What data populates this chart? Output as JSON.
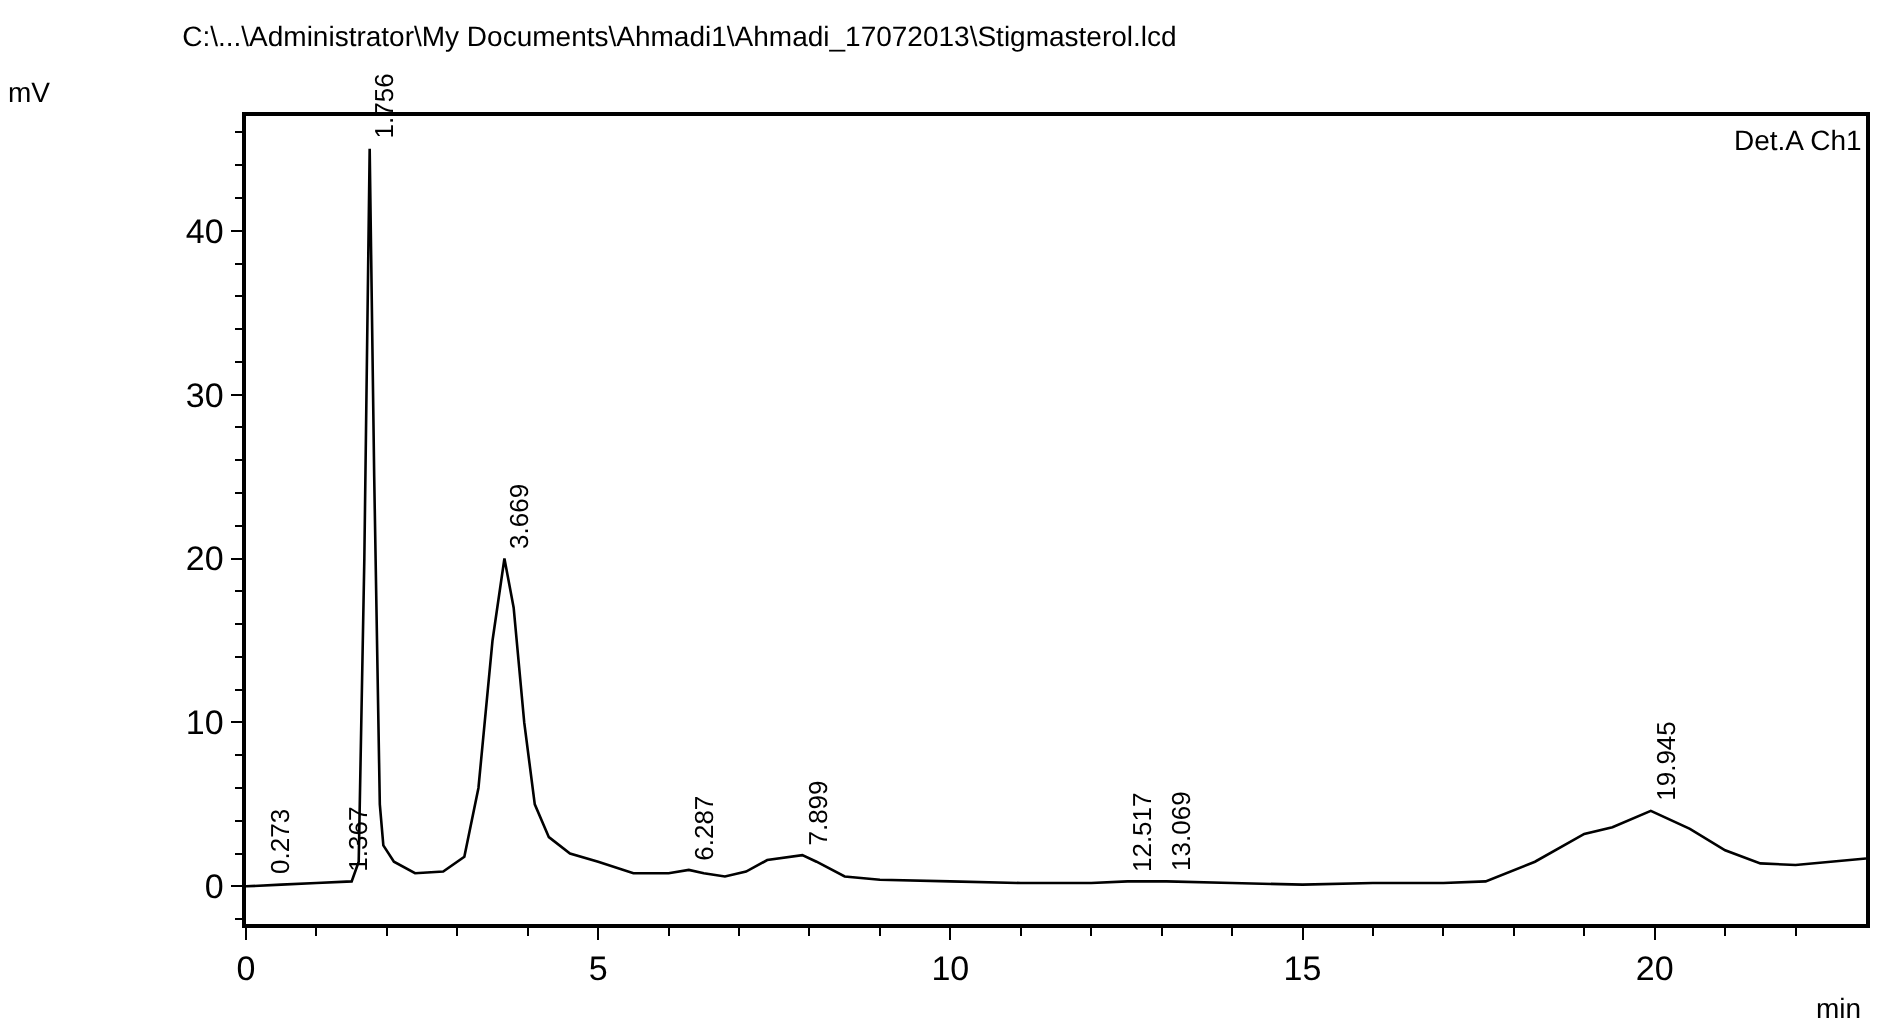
{
  "chart_data": {
    "type": "line",
    "title": "C:\\...\\Administrator\\My Documents\\Ahmadi1\\Ahmadi_17072013\\Stigmasterol.lcd",
    "xlabel": "min",
    "ylabel": "mV",
    "series": [
      {
        "color": "#000000",
        "x": [
          0,
          0.5,
          1.0,
          1.5,
          1.6,
          1.68,
          1.756,
          1.82,
          1.9,
          1.95,
          2.1,
          2.4,
          2.8,
          3.1,
          3.3,
          3.5,
          3.669,
          3.8,
          3.95,
          4.1,
          4.3,
          4.6,
          5.0,
          5.5,
          6.0,
          6.287,
          6.5,
          6.8,
          7.1,
          7.4,
          7.899,
          8.1,
          8.5,
          9,
          10,
          11,
          12,
          12.517,
          13.069,
          14,
          15,
          16,
          17,
          17.6,
          18.3,
          19,
          19.4,
          19.945,
          20.5,
          21,
          21.5,
          22,
          23
        ],
        "values": [
          0,
          0.1,
          0.2,
          0.3,
          1.5,
          20,
          45,
          25,
          5,
          2.5,
          1.5,
          0.8,
          0.9,
          1.8,
          6,
          15,
          20,
          17,
          10,
          5,
          3,
          2,
          1.5,
          0.8,
          0.8,
          1.0,
          0.8,
          0.6,
          0.9,
          1.6,
          1.9,
          1.5,
          0.6,
          0.4,
          0.3,
          0.2,
          0.2,
          0.3,
          0.3,
          0.2,
          0.1,
          0.2,
          0.2,
          0.3,
          1.5,
          3.2,
          3.6,
          4.6,
          3.5,
          2.2,
          1.4,
          1.3,
          1.7
        ]
      }
    ],
    "annotations": [
      {
        "text": "0.273",
        "x": 0.273,
        "y": 0.1
      },
      {
        "text": "1.367",
        "x": 1.367,
        "y": 0.3
      },
      {
        "text": "1.756",
        "x": 1.756,
        "y": 45
      },
      {
        "text": "3.669",
        "x": 3.669,
        "y": 20
      },
      {
        "text": "6.287",
        "x": 6.287,
        "y": 1.0
      },
      {
        "text": "7.899",
        "x": 7.899,
        "y": 1.9
      },
      {
        "text": "12.517",
        "x": 12.517,
        "y": 0.3
      },
      {
        "text": "13.069",
        "x": 13.069,
        "y": 0.3
      },
      {
        "text": "19.945",
        "x": 19.945,
        "y": 4.6
      },
      "Det.A Ch1"
    ],
    "xlim": [
      0,
      23
    ],
    "ylim": [
      -2.3,
      47
    ],
    "xticks": [
      0,
      {
        "value": 1,
        "label": null
      },
      {
        "value": 2,
        "label": null
      },
      {
        "value": 3,
        "label": null
      },
      {
        "value": 4,
        "label": null
      },
      5,
      {
        "value": 6,
        "label": null
      },
      {
        "value": 7,
        "label": null
      },
      {
        "value": 8,
        "label": null
      },
      {
        "value": 9,
        "label": null
      },
      10,
      {
        "value": 11,
        "label": null
      },
      {
        "value": 12,
        "label": null
      },
      {
        "value": 13,
        "label": null
      },
      {
        "value": 14,
        "label": null
      },
      15,
      {
        "value": 16,
        "label": null
      },
      {
        "value": 17,
        "label": null
      },
      {
        "value": 18,
        "label": null
      },
      {
        "value": 19,
        "label": null
      },
      20,
      {
        "value": 21,
        "label": null
      },
      {
        "value": 22,
        "label": null
      }
    ],
    "yticks": [
      {
        "value": -2,
        "label": null
      },
      0,
      {
        "value": 2,
        "label": null
      },
      {
        "value": 4,
        "label": null
      },
      {
        "value": 6,
        "label": null
      },
      {
        "value": 8,
        "label": null
      },
      10,
      {
        "value": 12,
        "label": null
      },
      {
        "value": 14,
        "label": null
      },
      {
        "value": 16,
        "label": null
      },
      {
        "value": 18,
        "label": null
      },
      20,
      {
        "value": 22,
        "label": null
      },
      {
        "value": 24,
        "label": null
      },
      {
        "value": 26,
        "label": null
      },
      {
        "value": 28,
        "label": null
      },
      30,
      {
        "value": 32,
        "label": null
      },
      {
        "value": 34,
        "label": null
      },
      {
        "value": 36,
        "label": null
      },
      {
        "value": 38,
        "label": null
      },
      40,
      {
        "value": 42,
        "label": null
      },
      {
        "value": 44,
        "label": null
      },
      {
        "value": 46,
        "label": null
      }
    ],
    "marker": "none",
    "line_style": "solid"
  }
}
